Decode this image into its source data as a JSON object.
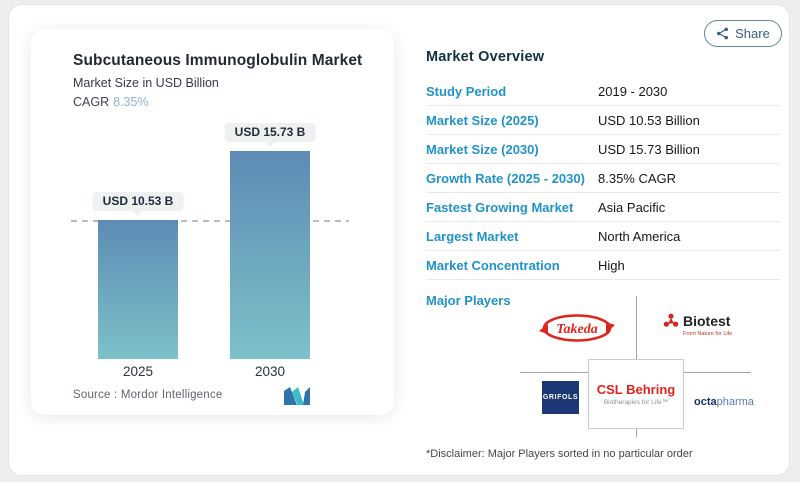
{
  "share": {
    "label": "Share"
  },
  "chart": {
    "title": "Subcutaneous Immunoglobulin Market",
    "subtitle": "Market Size in USD Billion",
    "cagr_label": "CAGR",
    "cagr_value": "8.35%",
    "source": "Source :  Mordor Intelligence"
  },
  "chart_data": {
    "type": "bar",
    "title": "Subcutaneous Immunoglobulin Market",
    "subtitle": "Market Size in USD Billion",
    "unit": "USD Billion",
    "categories": [
      "2025",
      "2030"
    ],
    "values": [
      10.53,
      15.73
    ],
    "value_labels": [
      "USD 10.53 B",
      "USD 15.73 B"
    ],
    "cagr": "8.35%",
    "ylim": [
      0,
      16
    ],
    "grid": false,
    "reference_line": {
      "value": 10.53,
      "style": "dashed"
    },
    "bar_gradient": [
      "#5e8bb4",
      "#7dc1c9"
    ]
  },
  "overview": {
    "heading": "Market Overview",
    "rows": [
      {
        "label": "Study Period",
        "value": "2019 - 2030"
      },
      {
        "label": "Market Size (2025)",
        "value": "USD 10.53 Billion"
      },
      {
        "label": "Market Size (2030)",
        "value": "USD 15.73 Billion"
      },
      {
        "label": "Growth Rate (2025 - 2030)",
        "value": "8.35% CAGR"
      },
      {
        "label": "Fastest Growing Market",
        "value": "Asia Pacific"
      },
      {
        "label": "Largest Market",
        "value": "North America"
      },
      {
        "label": "Market Concentration",
        "value": "High"
      }
    ]
  },
  "major_players": {
    "label": "Major Players",
    "takeda": {
      "name": "Takeda"
    },
    "biotest": {
      "name": "Biotest",
      "tagline": "From Nature for Life"
    },
    "grifols": {
      "name": "GRIFOLS"
    },
    "csl": {
      "name": "CSL Behring",
      "tagline": "Biotherapies for Life™"
    },
    "octapharma": {
      "prefix": "octa",
      "suffix": "pharma"
    },
    "disclaimer": "*Disclaimer: Major Players sorted in no particular order"
  },
  "colors": {
    "label_blue": "#2193c8",
    "heading_dark": "#123240",
    "brand_red": "#e0241c",
    "grifols_navy": "#1c3775",
    "bar_top": "#5e8bb4",
    "bar_bottom": "#7dc1c9",
    "share_blue": "#376185"
  }
}
